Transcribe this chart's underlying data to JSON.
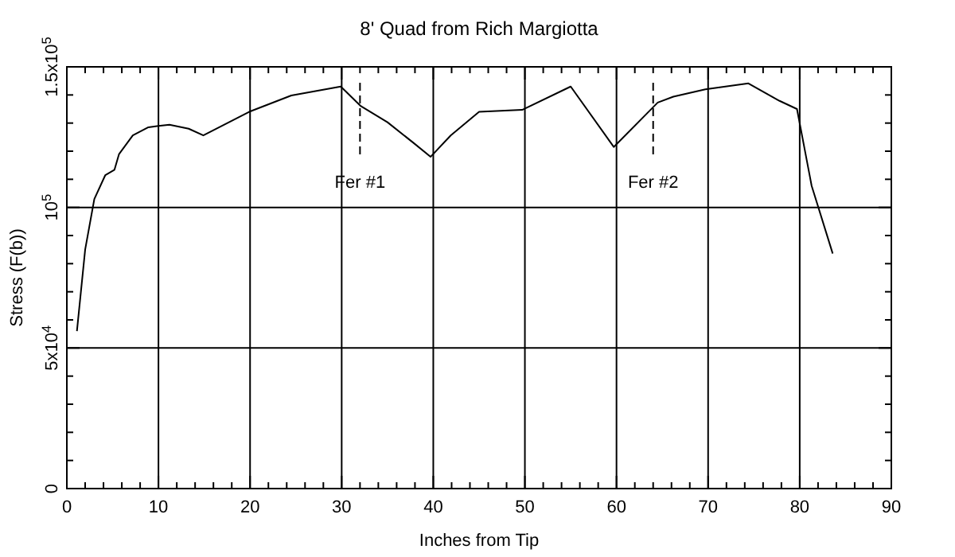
{
  "chart_data": {
    "type": "line",
    "title": "8' Quad from Rich Margiotta",
    "xlabel": "Inches from Tip",
    "ylabel": "Stress (F(b))",
    "x": [
      1.1,
      2,
      3,
      4.2,
      5.2,
      5.7,
      7.2,
      8.9,
      10,
      11.2,
      13.3,
      14.9,
      19.9,
      24.5,
      29.9,
      32.1,
      35,
      37.9,
      39.7,
      41.9,
      45,
      49.7,
      55,
      59.7,
      64.5,
      66.2,
      69.7,
      74.4,
      77.8,
      79.7,
      81.3,
      83.6
    ],
    "series": [
      {
        "color": "#000000",
        "values": [
          56000,
          85000,
          103000,
          111500,
          113400,
          119000,
          125600,
          128500,
          129000,
          129400,
          128000,
          125600,
          134000,
          139800,
          143000,
          136000,
          130300,
          122800,
          118000,
          125600,
          134000,
          134700,
          143000,
          121500,
          137300,
          139400,
          142000,
          144100,
          137900,
          135000,
          107700,
          83600
        ]
      }
    ],
    "xlim": [
      0,
      90
    ],
    "xticks": [
      0,
      {
        "value": 2,
        "label": null
      },
      {
        "value": 4,
        "label": null
      },
      {
        "value": 6,
        "label": null
      },
      {
        "value": 8,
        "label": null
      },
      10,
      {
        "value": 12,
        "label": null
      },
      {
        "value": 14,
        "label": null
      },
      {
        "value": 16,
        "label": null
      },
      {
        "value": 18,
        "label": null
      },
      20,
      {
        "value": 22,
        "label": null
      },
      {
        "value": 24,
        "label": null
      },
      {
        "value": 26,
        "label": null
      },
      {
        "value": 28,
        "label": null
      },
      30,
      {
        "value": 32,
        "label": null
      },
      {
        "value": 34,
        "label": null
      },
      {
        "value": 36,
        "label": null
      },
      {
        "value": 38,
        "label": null
      },
      40,
      {
        "value": 42,
        "label": null
      },
      {
        "value": 44,
        "label": null
      },
      {
        "value": 46,
        "label": null
      },
      {
        "value": 48,
        "label": null
      },
      50,
      {
        "value": 52,
        "label": null
      },
      {
        "value": 54,
        "label": null
      },
      {
        "value": 56,
        "label": null
      },
      {
        "value": 58,
        "label": null
      },
      60,
      {
        "value": 62,
        "label": null
      },
      {
        "value": 64,
        "label": null
      },
      {
        "value": 66,
        "label": null
      },
      {
        "value": 68,
        "label": null
      },
      70,
      {
        "value": 72,
        "label": null
      },
      {
        "value": 74,
        "label": null
      },
      {
        "value": 76,
        "label": null
      },
      {
        "value": 78,
        "label": null
      },
      80,
      {
        "value": 82,
        "label": null
      },
      {
        "value": 84,
        "label": null
      },
      {
        "value": 86,
        "label": null
      },
      {
        "value": 88,
        "label": null
      },
      90
    ],
    "ylim": [
      0,
      150000
    ],
    "yticks": [
      0,
      {
        "value": 10000,
        "label": null
      },
      {
        "value": 20000,
        "label": null
      },
      {
        "value": 30000,
        "label": null
      },
      {
        "value": 40000,
        "label": null
      },
      {
        "value": 50000,
        "label": "5x10$^{4}$"
      },
      {
        "value": 60000,
        "label": null
      },
      {
        "value": 70000,
        "label": null
      },
      {
        "value": 80000,
        "label": null
      },
      {
        "value": 90000,
        "label": null
      },
      {
        "value": 100000,
        "label": "10$^{5}$"
      },
      {
        "value": 110000,
        "label": null
      },
      {
        "value": 120000,
        "label": null
      },
      {
        "value": 130000,
        "label": null
      },
      {
        "value": 140000,
        "label": null
      },
      {
        "value": 150000,
        "label": "1.5x10$^{5}$"
      }
    ],
    "ref_lines": [
      {
        "axis": "x",
        "value": 32,
        "label": "Fer #1",
        "line_style": "dashed"
      },
      {
        "axis": "x",
        "value": 64,
        "label": "Fer #2",
        "line_style": "dashed"
      }
    ],
    "grid": true,
    "marker": "none",
    "line_style": "solid"
  }
}
